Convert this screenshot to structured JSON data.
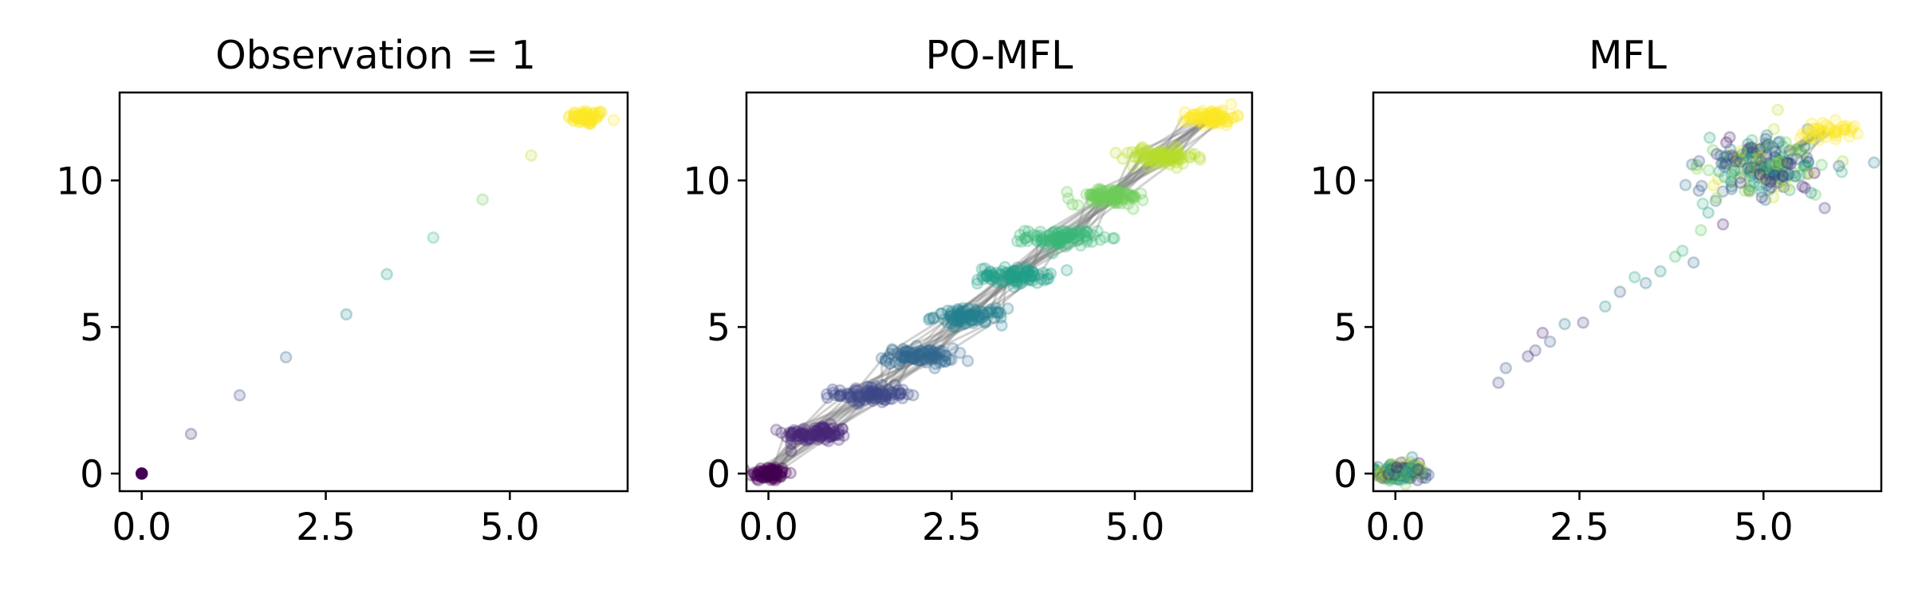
{
  "chart_data": [
    {
      "type": "scatter",
      "title": "Observation = 1",
      "xlabel": "",
      "ylabel": "",
      "xlim": [
        -0.3,
        6.6
      ],
      "ylim": [
        -0.6,
        13.0
      ],
      "xticks": [
        0.0,
        2.5,
        5.0
      ],
      "xtick_labels": [
        "0.0",
        "2.5",
        "5.0"
      ],
      "yticks": [
        0,
        5,
        10
      ],
      "ytick_labels": [
        "0",
        "5",
        "10"
      ],
      "grid": false,
      "colormap": "viridis",
      "series": [
        {
          "points": [
            {
              "x": 0.0,
              "y": 0.0,
              "t": 0.0
            },
            {
              "x": 0.67,
              "y": 1.35,
              "t": 0.11
            },
            {
              "x": 1.33,
              "y": 2.67,
              "t": 0.22
            },
            {
              "x": 1.96,
              "y": 3.97,
              "t": 0.33
            },
            {
              "x": 2.78,
              "y": 5.43,
              "t": 0.44
            },
            {
              "x": 3.33,
              "y": 6.8,
              "t": 0.56
            },
            {
              "x": 3.96,
              "y": 8.05,
              "t": 0.67
            },
            {
              "x": 4.63,
              "y": 9.35,
              "t": 0.78
            },
            {
              "x": 5.29,
              "y": 10.85,
              "t": 0.89
            }
          ],
          "clusters": [
            {
              "x": 6.05,
              "y": 12.15,
              "sx": 0.13,
              "sy": 0.13,
              "n": 60,
              "t": 1.0
            }
          ]
        }
      ]
    },
    {
      "type": "scatter",
      "title": "PO-MFL",
      "xlabel": "",
      "ylabel": "",
      "xlim": [
        -0.3,
        6.6
      ],
      "ylim": [
        -0.6,
        13.0
      ],
      "xticks": [
        0.0,
        2.5,
        5.0
      ],
      "xtick_labels": [
        "0.0",
        "2.5",
        "5.0"
      ],
      "yticks": [
        0,
        5,
        10
      ],
      "ytick_labels": [
        "0",
        "5",
        "10"
      ],
      "grid": false,
      "colormap": "viridis",
      "series": [
        {
          "clusters": [
            {
              "x": 0.0,
              "y": 0.0,
              "sx": 0.13,
              "sy": 0.13,
              "n": 80,
              "t": 0.0
            },
            {
              "x": 0.65,
              "y": 1.35,
              "sx": 0.22,
              "sy": 0.14,
              "n": 90,
              "t": 0.11
            },
            {
              "x": 1.4,
              "y": 2.7,
              "sx": 0.24,
              "sy": 0.14,
              "n": 90,
              "t": 0.22
            },
            {
              "x": 2.05,
              "y": 4.0,
              "sx": 0.24,
              "sy": 0.14,
              "n": 90,
              "t": 0.33
            },
            {
              "x": 2.75,
              "y": 5.35,
              "sx": 0.24,
              "sy": 0.14,
              "n": 90,
              "t": 0.44
            },
            {
              "x": 3.35,
              "y": 6.75,
              "sx": 0.24,
              "sy": 0.14,
              "n": 90,
              "t": 0.56
            },
            {
              "x": 4.0,
              "y": 8.05,
              "sx": 0.24,
              "sy": 0.14,
              "n": 90,
              "t": 0.67
            },
            {
              "x": 4.65,
              "y": 9.45,
              "sx": 0.24,
              "sy": 0.14,
              "n": 90,
              "t": 0.78
            },
            {
              "x": 5.35,
              "y": 10.8,
              "sx": 0.24,
              "sy": 0.14,
              "n": 90,
              "t": 0.89
            },
            {
              "x": 6.05,
              "y": 12.15,
              "sx": 0.16,
              "sy": 0.13,
              "n": 80,
              "t": 1.0
            }
          ],
          "trajectories": 20
        }
      ]
    },
    {
      "type": "scatter",
      "title": "MFL",
      "xlabel": "",
      "ylabel": "",
      "xlim": [
        -0.3,
        6.6
      ],
      "ylim": [
        -0.6,
        13.0
      ],
      "xticks": [
        0.0,
        2.5,
        5.0
      ],
      "xtick_labels": [
        "0.0",
        "2.5",
        "5.0"
      ],
      "yticks": [
        0,
        5,
        10
      ],
      "ytick_labels": [
        "0",
        "5",
        "10"
      ],
      "grid": false,
      "colormap": "viridis",
      "series": [
        {
          "clusters": [
            {
              "x": 0.05,
              "y": 0.05,
              "sx": 0.15,
              "sy": 0.13,
              "n": 200,
              "t": "mixed"
            },
            {
              "x": 5.0,
              "y": 10.5,
              "sx": 0.4,
              "sy": 0.5,
              "n": 220,
              "t": "mixed"
            },
            {
              "x": 5.85,
              "y": 11.7,
              "sx": 0.2,
              "sy": 0.15,
              "n": 40,
              "t": 1.0
            }
          ],
          "points": [
            {
              "x": 1.4,
              "y": 3.1,
              "t": 0.2
            },
            {
              "x": 1.5,
              "y": 3.6,
              "t": 0.25
            },
            {
              "x": 1.8,
              "y": 4.0,
              "t": 0.15
            },
            {
              "x": 1.9,
              "y": 4.2,
              "t": 0.2
            },
            {
              "x": 2.0,
              "y": 4.8,
              "t": 0.1
            },
            {
              "x": 2.1,
              "y": 4.5,
              "t": 0.3
            },
            {
              "x": 2.3,
              "y": 5.1,
              "t": 0.4
            },
            {
              "x": 2.55,
              "y": 5.15,
              "t": 0.2
            },
            {
              "x": 2.85,
              "y": 5.7,
              "t": 0.5
            },
            {
              "x": 3.05,
              "y": 6.2,
              "t": 0.3
            },
            {
              "x": 3.25,
              "y": 6.7,
              "t": 0.6
            },
            {
              "x": 3.4,
              "y": 6.5,
              "t": 0.4
            },
            {
              "x": 3.6,
              "y": 6.9,
              "t": 0.5
            },
            {
              "x": 3.8,
              "y": 7.4,
              "t": 0.7
            },
            {
              "x": 3.9,
              "y": 7.6,
              "t": 0.65
            },
            {
              "x": 4.05,
              "y": 7.2,
              "t": 0.35
            },
            {
              "x": 4.15,
              "y": 8.3,
              "t": 0.75
            },
            {
              "x": 4.25,
              "y": 8.9,
              "t": 0.55
            },
            {
              "x": 4.35,
              "y": 9.3,
              "t": 0.4
            },
            {
              "x": 4.45,
              "y": 8.5,
              "t": 0.1
            }
          ],
          "trajectories": 12
        }
      ]
    }
  ]
}
